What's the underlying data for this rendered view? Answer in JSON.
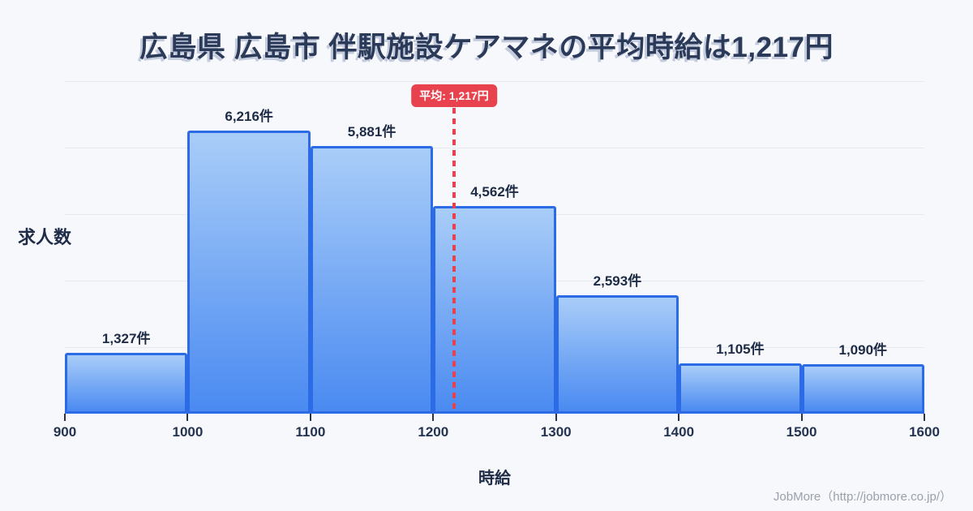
{
  "header": {
    "title": "広島県 広島市 伴駅施設ケアマネの平均時給は1,217円"
  },
  "chart_data": {
    "type": "bar",
    "title": "広島県 広島市 伴駅施設ケアマネの平均時給は1,217円",
    "categories": [
      "900-1000",
      "1000-1100",
      "1100-1200",
      "1200-1300",
      "1300-1400",
      "1400-1500",
      "1500-1600"
    ],
    "values": [
      1327,
      6216,
      5881,
      4562,
      2593,
      1105,
      1090
    ],
    "bar_labels": [
      "1,327件",
      "6,216件",
      "5,881件",
      "4,562件",
      "2,593件",
      "1,105件",
      "1,090件"
    ],
    "x_ticks": [
      "900",
      "1000",
      "1100",
      "1200",
      "1300",
      "1400",
      "1500",
      "1600"
    ],
    "x_range": [
      900,
      1600
    ],
    "xlabel": "時給",
    "ylabel": "求人数",
    "ylim": [
      0,
      7300
    ],
    "gridline_count": 5,
    "grid": true,
    "legend": "none",
    "average": {
      "value": 1217,
      "label": "平均: 1,217円"
    },
    "colors": {
      "bar_fill_top": "#a9cdf8",
      "bar_fill_bottom": "#4a8af1",
      "bar_border": "#2b6ce6",
      "average_line": "#e8424e",
      "title_text": "#2a3a58",
      "label_text": "#1d2b45",
      "background": "#f7f8fc",
      "gridline": "#e4e9f2"
    }
  },
  "footer": {
    "credit": "JobMore（http://jobmore.co.jp/）"
  }
}
